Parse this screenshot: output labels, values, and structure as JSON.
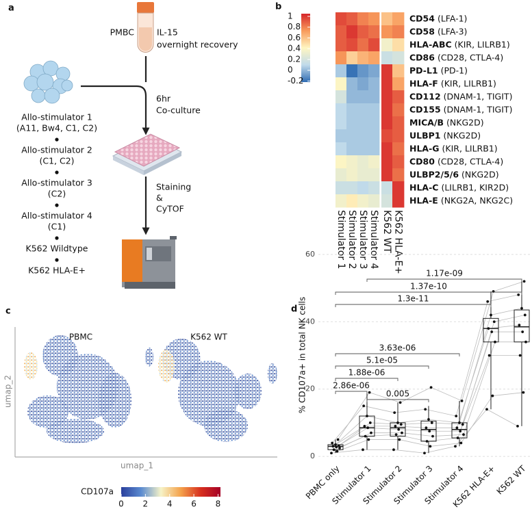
{
  "panel_a": {
    "label": "a",
    "tube_label": "PMBC",
    "treatment": "IL-15",
    "treatment_note": "overnight recovery",
    "step1": "6hr",
    "step1_note": "Co-culture",
    "step2": "Staining",
    "step2_amp": "&",
    "step2_note": "CyTOF",
    "stimulators": [
      {
        "name": "Allo-stimulator 1",
        "hla": "(A11, Bw4, C1, C2)"
      },
      {
        "name": "Allo-stimulator  2",
        "hla": "(C1, C2)"
      },
      {
        "name": "Allo-stimulator 3",
        "hla": "(C2)"
      },
      {
        "name": "Allo-stimulator 4",
        "hla": "(C1)"
      },
      {
        "name": "K562 Wildtype"
      },
      {
        "name": "K562 HLA-E+"
      }
    ]
  },
  "panel_b": {
    "label": "b",
    "columns": [
      "Stimulator 1",
      "Stimulator 2",
      "Stimulator 3",
      "Stimulator 4",
      "K562 WT",
      "K562 HLA-E+"
    ],
    "rows": [
      {
        "marker": "CD54",
        "ligand": "(LFA-1)"
      },
      {
        "marker": "CD58",
        "ligand": "(LFA-3)"
      },
      {
        "marker": "HLA-ABC",
        "ligand": "(KIR, LILRB1)"
      },
      {
        "marker": "CD86",
        "ligand": "(CD28, CTLA-4)"
      },
      {
        "marker": "PD-L1",
        "ligand": "(PD-1)"
      },
      {
        "marker": "HLA-F",
        "ligand": "(KIR, LILRB1)"
      },
      {
        "marker": "CD112",
        "ligand": "(DNAM-1, TIGIT)"
      },
      {
        "marker": "CD155",
        "ligand": "(DNAM-1, TIGIT)"
      },
      {
        "marker": "MICA/B",
        "ligand": "(NKG2D)"
      },
      {
        "marker": "ULBP1",
        "ligand": "(NKG2D)"
      },
      {
        "marker": "HLA-G",
        "ligand": "(KIR, LILRB1)"
      },
      {
        "marker": "CD80",
        "ligand": "(CD28, CTLA-4)"
      },
      {
        "marker": "ULBP2/5/6",
        "ligand": "(NKG2D)"
      },
      {
        "marker": "HLA-C",
        "ligand": "(LILRB1, KIR2D)"
      },
      {
        "marker": "HLA-E",
        "ligand": "(NKG2A, NKG2C)"
      }
    ],
    "values": [
      [
        0.95,
        0.9,
        0.8,
        0.75,
        0.6,
        0.7
      ],
      [
        0.9,
        1.0,
        0.9,
        0.85,
        0.75,
        0.8
      ],
      [
        0.9,
        0.95,
        0.85,
        0.95,
        0.35,
        0.5
      ],
      [
        0.75,
        0.55,
        0.65,
        0.7,
        0.15,
        0.2
      ],
      [
        0.05,
        -0.2,
        -0.1,
        -0.05,
        1.0,
        0.6
      ],
      [
        0.4,
        0.0,
        -0.05,
        0.0,
        1.0,
        0.7
      ],
      [
        0.2,
        0.0,
        0.0,
        0.0,
        1.0,
        0.9
      ],
      [
        0.1,
        0.05,
        0.05,
        0.05,
        1.0,
        0.85
      ],
      [
        0.1,
        0.05,
        0.05,
        0.05,
        1.0,
        0.9
      ],
      [
        0.05,
        0.05,
        0.05,
        0.05,
        0.95,
        0.9
      ],
      [
        0.1,
        0.05,
        0.05,
        0.05,
        1.0,
        0.85
      ],
      [
        0.4,
        0.35,
        0.3,
        0.35,
        1.0,
        0.9
      ],
      [
        0.3,
        0.35,
        0.3,
        0.3,
        1.0,
        0.85
      ],
      [
        0.15,
        0.15,
        0.1,
        0.15,
        0.15,
        1.0
      ],
      [
        0.35,
        0.45,
        0.35,
        0.3,
        0.2,
        1.0
      ]
    ],
    "colorbar": {
      "lim": [
        -0.22,
        1.05
      ],
      "ticks": [
        1,
        0.8,
        0.6,
        0.4,
        0.2,
        0,
        -0.2
      ],
      "colors": [
        "#2f6cb3",
        "#c0daea",
        "#fff6c2",
        "#f89b5c",
        "#d6262a"
      ]
    }
  },
  "panel_c": {
    "label": "c",
    "titles": [
      "PBMC",
      "K562 WT"
    ],
    "xlabel": "umap_1",
    "ylabel": "umap_2",
    "colorbar": {
      "title": "CD107a",
      "lim": [
        0,
        8.2
      ],
      "ticks": [
        0,
        2,
        4,
        6,
        8
      ],
      "colors": [
        "#2a3f9c",
        "#5b8bd0",
        "#f6f3c8",
        "#f4a24b",
        "#d7301f",
        "#a50026"
      ]
    }
  },
  "chart_data": {
    "type": "box",
    "label": "d",
    "ylabel": "% CD107a+ in total NK cells",
    "categories": [
      "PBMC only",
      "Stimulator 1",
      "Stimulator 2",
      "Stimulator 3",
      "Stimulator 4",
      "K562 HLA-E+",
      "K562 WT"
    ],
    "boxes": {
      "min": [
        1,
        2,
        2,
        1,
        3,
        14,
        9
      ],
      "q1": [
        2,
        6,
        6,
        4.5,
        5.5,
        34,
        34
      ],
      "median": [
        3,
        8.5,
        8.5,
        8,
        8,
        38,
        38.5
      ],
      "q3": [
        3.5,
        12,
        10,
        10.5,
        10,
        41,
        43.5
      ],
      "max": [
        5,
        19,
        16,
        15,
        16.5,
        49,
        52
      ]
    },
    "points": [
      [
        1,
        1.5,
        2,
        2.5,
        2.8,
        3,
        3.2,
        3.5,
        4,
        5
      ],
      [
        2,
        5,
        6,
        7,
        8.5,
        9,
        10,
        12,
        15,
        19
      ],
      [
        2,
        5,
        6.5,
        7,
        8,
        9,
        9.5,
        10,
        13,
        16
      ],
      [
        1,
        3,
        4.5,
        6,
        7.5,
        8.5,
        10,
        11,
        14,
        20.5
      ],
      [
        3,
        4,
        5.5,
        6.5,
        7.5,
        8.5,
        9.5,
        10,
        12,
        16.5
      ],
      [
        14,
        18,
        30,
        34,
        37,
        38,
        40,
        42,
        46,
        49
      ],
      [
        9,
        19,
        30,
        34,
        37,
        39,
        42,
        44,
        48,
        52
      ]
    ],
    "comparisons": [
      {
        "pair": [
          0,
          1
        ],
        "label": "2.86e-06"
      },
      {
        "pair": [
          1,
          3
        ],
        "label": "0.005"
      },
      {
        "pair": [
          0,
          2
        ],
        "label": "1.88e-06"
      },
      {
        "pair": [
          0,
          3
        ],
        "label": "5.1e-05"
      },
      {
        "pair": [
          0,
          4
        ],
        "label": "3.63e-06"
      },
      {
        "pair": [
          0,
          5
        ],
        "label": "1.3e-11"
      },
      {
        "pair": [
          0,
          6
        ],
        "label": "1.37e-10"
      },
      {
        "pair": [
          1,
          6
        ],
        "label": "1.17e-09"
      }
    ],
    "ylim": [
      -2,
      62
    ],
    "yticks": [
      0,
      20,
      40,
      60
    ],
    "grid": true,
    "color": "#222222",
    "point_color": "#111111",
    "line_color": "#bbbbbb"
  }
}
